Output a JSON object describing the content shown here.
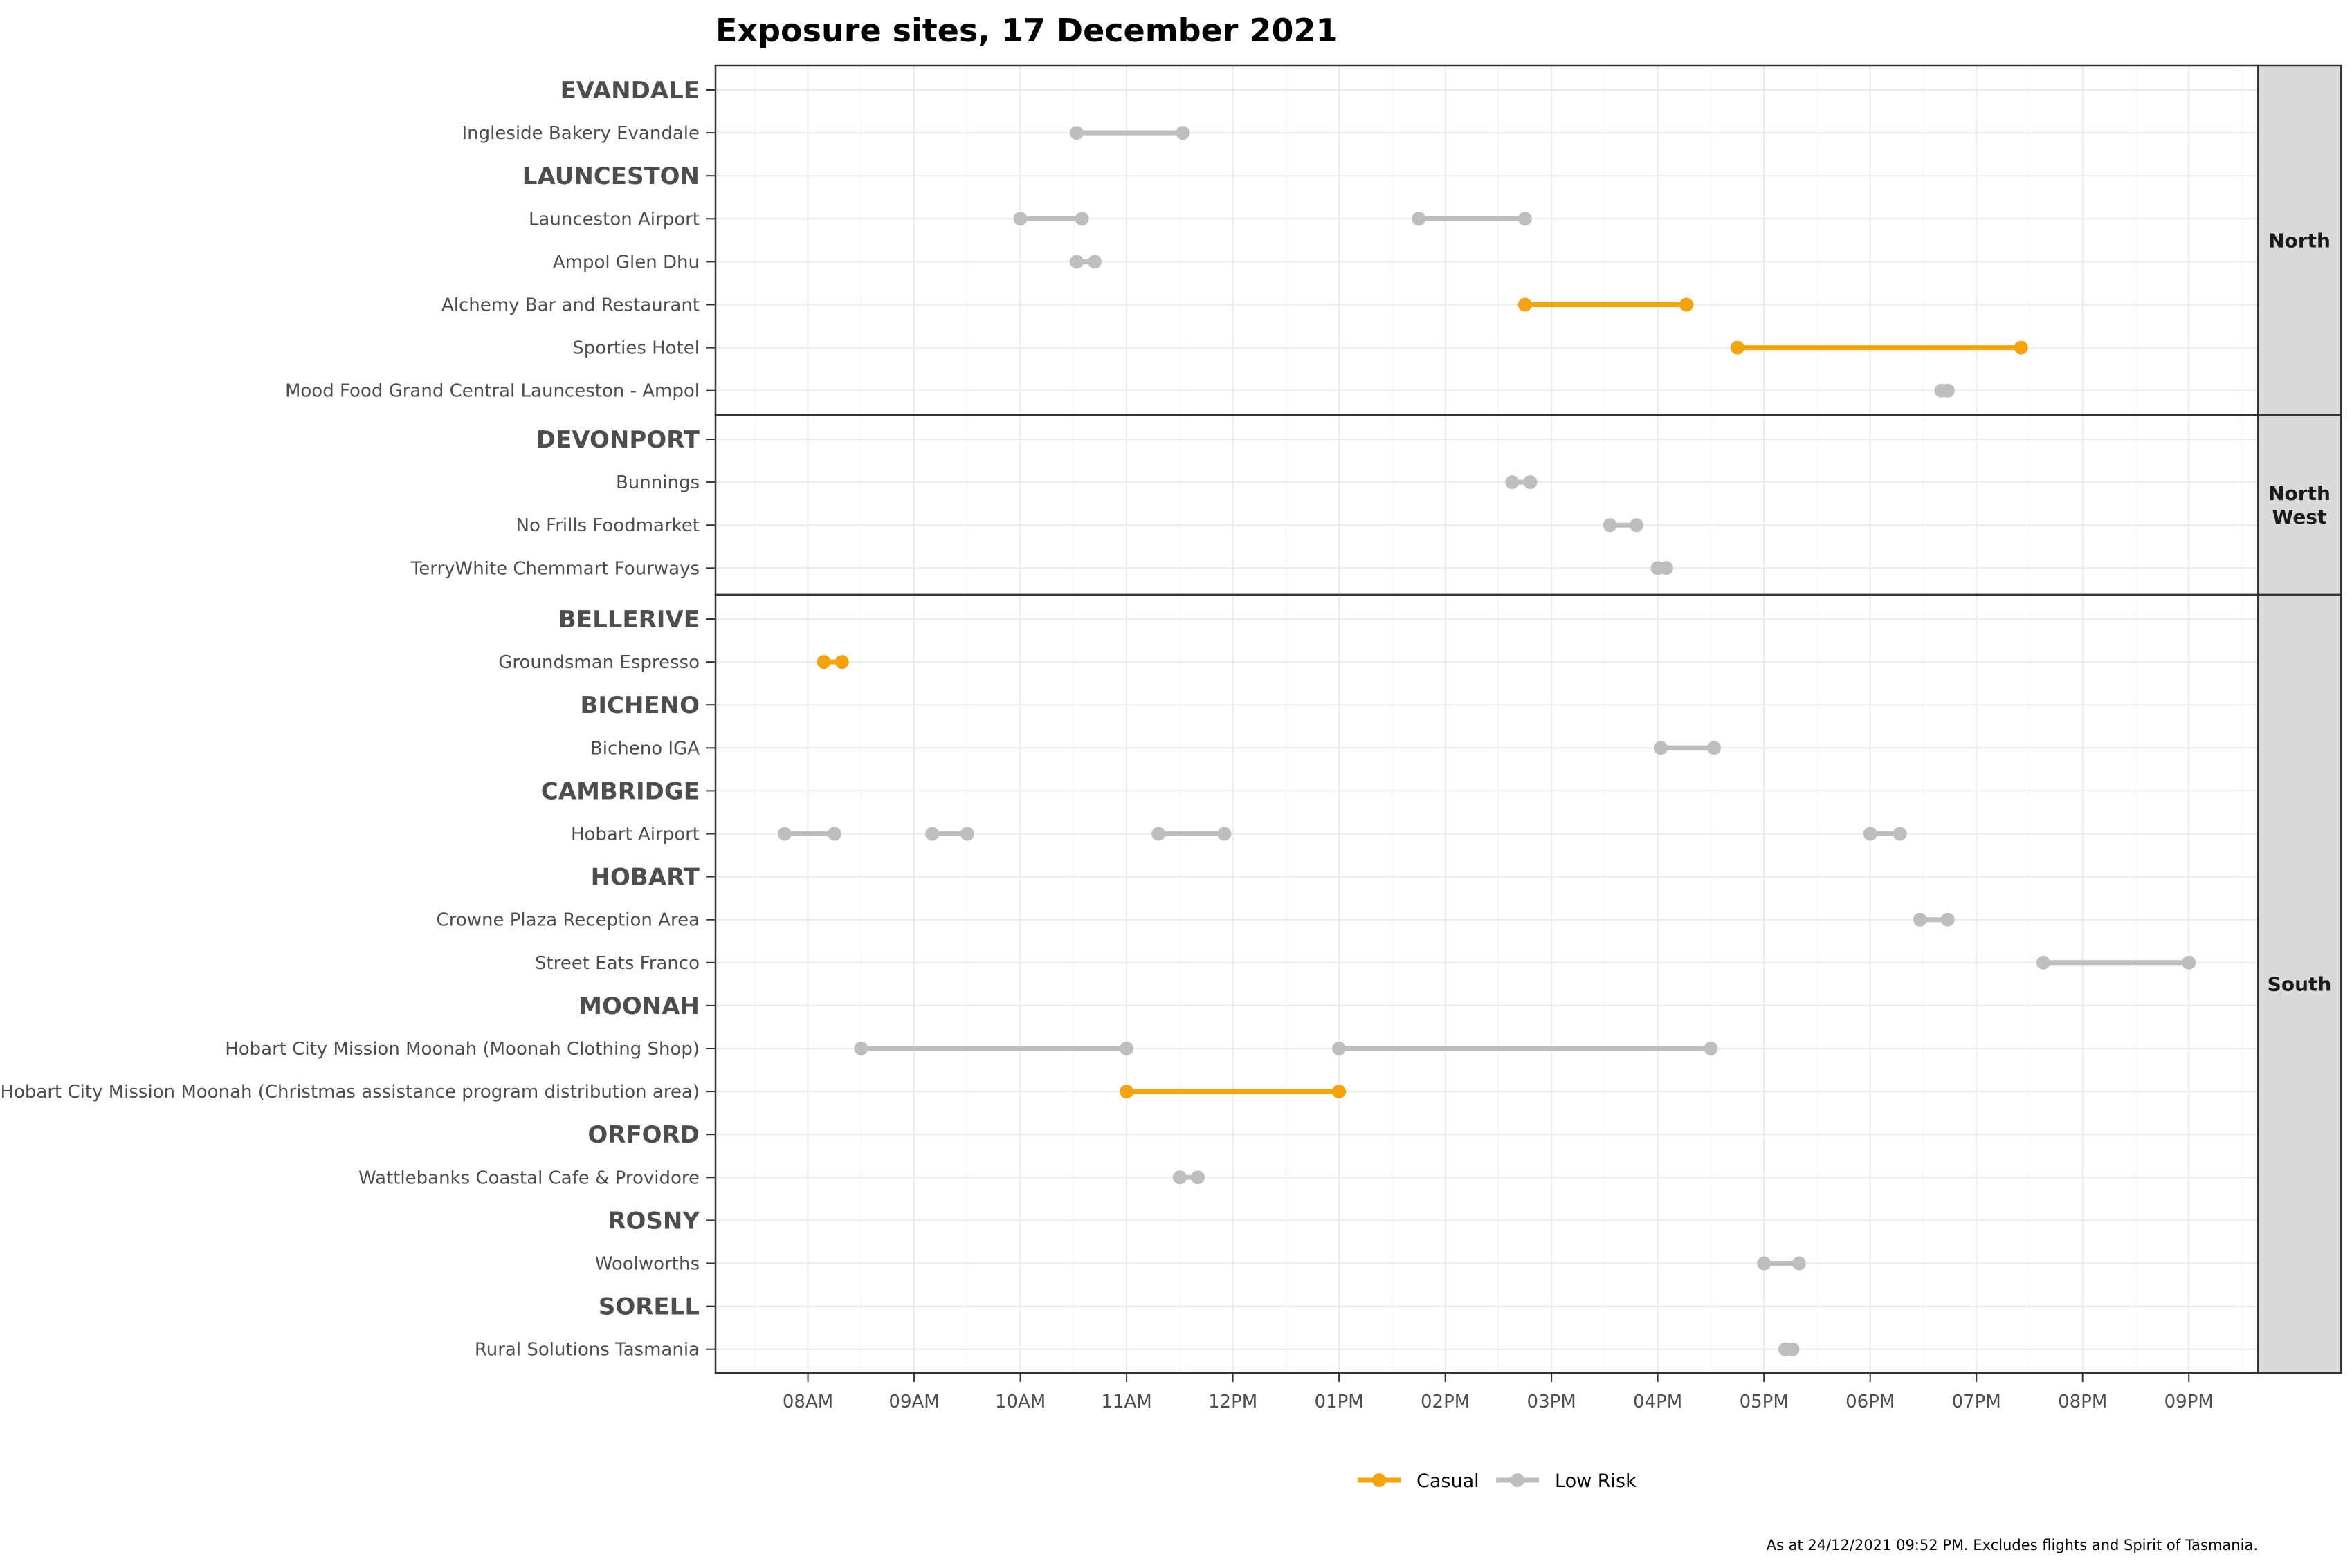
{
  "chart_data": {
    "type": "dumbbell",
    "title": "Exposure sites, 17 December 2021",
    "caption": "As at 24/12/2021 09:52 PM. Excludes flights and Spirit of Tasmania.",
    "x_ticks": [
      "08AM",
      "09AM",
      "10AM",
      "11AM",
      "12PM",
      "01PM",
      "02PM",
      "03PM",
      "04PM",
      "05PM",
      "06PM",
      "07PM",
      "08PM",
      "09PM"
    ],
    "x_tick_hours": [
      8,
      9,
      10,
      11,
      12,
      13,
      14,
      15,
      16,
      17,
      18,
      19,
      20,
      21
    ],
    "xlim_hours": [
      7.13,
      21.65
    ],
    "legend": [
      {
        "name": "Casual",
        "color": "#f5a30f"
      },
      {
        "name": "Low Risk",
        "color": "#bebebe"
      }
    ],
    "colors": {
      "casual": "#f5a30f",
      "low": "#bebebe",
      "strip_bg": "#d9d9d9"
    },
    "facets": [
      {
        "name": "North",
        "rows": [
          {
            "label": "EVANDALE",
            "town": true
          },
          {
            "label": "Ingleside Bakery Evandale",
            "segments": [
              {
                "start": 10.53,
                "end": 11.53,
                "risk": "low"
              }
            ]
          },
          {
            "label": "LAUNCESTON",
            "town": true
          },
          {
            "label": "Launceston Airport",
            "segments": [
              {
                "start": 10.0,
                "end": 10.58,
                "risk": "low"
              },
              {
                "start": 13.75,
                "end": 14.75,
                "risk": "low"
              }
            ]
          },
          {
            "label": "Ampol Glen Dhu",
            "segments": [
              {
                "start": 10.53,
                "end": 10.7,
                "risk": "low"
              }
            ]
          },
          {
            "label": "Alchemy Bar and Restaurant",
            "segments": [
              {
                "start": 14.75,
                "end": 16.27,
                "risk": "casual"
              }
            ]
          },
          {
            "label": "Sporties Hotel",
            "segments": [
              {
                "start": 16.75,
                "end": 19.42,
                "risk": "casual"
              }
            ]
          },
          {
            "label": "Mood Food Grand Central Launceston - Ampol",
            "segments": [
              {
                "start": 18.67,
                "end": 18.73,
                "risk": "low"
              }
            ]
          }
        ]
      },
      {
        "name": "North West",
        "rows": [
          {
            "label": "DEVONPORT",
            "town": true
          },
          {
            "label": "Bunnings",
            "segments": [
              {
                "start": 14.63,
                "end": 14.8,
                "risk": "low"
              }
            ]
          },
          {
            "label": "No Frills Foodmarket",
            "segments": [
              {
                "start": 15.55,
                "end": 15.8,
                "risk": "low"
              }
            ]
          },
          {
            "label": "TerryWhite Chemmart Fourways",
            "segments": [
              {
                "start": 16.0,
                "end": 16.08,
                "risk": "low"
              }
            ]
          }
        ]
      },
      {
        "name": "South",
        "rows": [
          {
            "label": "BELLERIVE",
            "town": true
          },
          {
            "label": "Groundsman Espresso",
            "segments": [
              {
                "start": 8.15,
                "end": 8.32,
                "risk": "casual"
              }
            ]
          },
          {
            "label": "BICHENO",
            "town": true
          },
          {
            "label": "Bicheno IGA",
            "segments": [
              {
                "start": 16.03,
                "end": 16.53,
                "risk": "low"
              }
            ]
          },
          {
            "label": "CAMBRIDGE",
            "town": true
          },
          {
            "label": "Hobart Airport",
            "segments": [
              {
                "start": 7.78,
                "end": 8.25,
                "risk": "low"
              },
              {
                "start": 9.17,
                "end": 9.5,
                "risk": "low"
              },
              {
                "start": 11.3,
                "end": 11.92,
                "risk": "low"
              },
              {
                "start": 18.0,
                "end": 18.28,
                "risk": "low"
              }
            ]
          },
          {
            "label": "HOBART",
            "town": true
          },
          {
            "label": "Crowne Plaza Reception Area",
            "segments": [
              {
                "start": 18.47,
                "end": 18.73,
                "risk": "low"
              }
            ]
          },
          {
            "label": "Street Eats Franco",
            "segments": [
              {
                "start": 19.63,
                "end": 21.0,
                "risk": "low"
              }
            ]
          },
          {
            "label": "MOONAH",
            "town": true
          },
          {
            "label": "Hobart City Mission Moonah (Moonah Clothing Shop)",
            "segments": [
              {
                "start": 8.5,
                "end": 11.0,
                "risk": "low"
              },
              {
                "start": 13.0,
                "end": 16.5,
                "risk": "low"
              }
            ]
          },
          {
            "label": "Hobart City Mission Moonah (Christmas assistance program distribution area)",
            "segments": [
              {
                "start": 11.0,
                "end": 13.0,
                "risk": "casual"
              }
            ]
          },
          {
            "label": "ORFORD",
            "town": true
          },
          {
            "label": "Wattlebanks Coastal Cafe & Providore",
            "segments": [
              {
                "start": 11.5,
                "end": 11.67,
                "risk": "low"
              }
            ]
          },
          {
            "label": "ROSNY",
            "town": true
          },
          {
            "label": "Woolworths",
            "segments": [
              {
                "start": 17.0,
                "end": 17.33,
                "risk": "low"
              }
            ]
          },
          {
            "label": "SORELL",
            "town": true
          },
          {
            "label": "Rural Solutions Tasmania",
            "segments": [
              {
                "start": 17.2,
                "end": 17.27,
                "risk": "low"
              }
            ]
          }
        ]
      }
    ]
  }
}
